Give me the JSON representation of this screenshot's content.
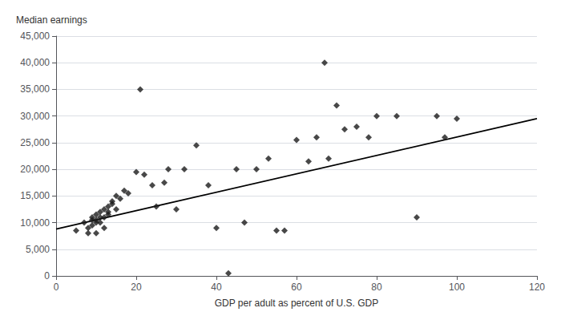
{
  "chart_data": {
    "type": "scatter",
    "xlabel": "GDP per adult as percent of U.S. GDP",
    "ylabel": "Median earnings",
    "series": [
      {
        "type": "scatter",
        "marker": "diamond",
        "color": "#1a1a1a",
        "x": [
          5,
          7,
          8,
          8,
          9,
          9,
          9,
          10,
          10,
          10,
          10,
          11,
          11,
          11,
          12,
          12,
          12,
          13,
          13,
          13,
          14,
          14,
          15,
          15,
          16,
          17,
          18,
          20,
          21,
          22,
          24,
          25,
          27,
          28,
          30,
          32,
          35,
          38,
          40,
          43,
          45,
          47,
          50,
          53,
          55,
          57,
          60,
          63,
          65,
          67,
          68,
          70,
          72,
          75,
          78,
          80,
          85,
          90,
          95,
          97,
          100
        ],
        "values": [
          8500,
          10000,
          9000,
          8000,
          10500,
          11000,
          9500,
          10000,
          10500,
          11500,
          8000,
          11000,
          12000,
          10000,
          12500,
          11000,
          9000,
          12000,
          13000,
          11500,
          14000,
          13500,
          15000,
          12500,
          14500,
          16000,
          15500,
          19500,
          35000,
          19000,
          17000,
          13000,
          17500,
          20000,
          12500,
          20000,
          24500,
          17000,
          9000,
          500,
          20000,
          10000,
          20000,
          22000,
          8500,
          8500,
          25500,
          21500,
          26000,
          40000,
          22000,
          32000,
          27500,
          28000,
          26000,
          30000,
          30000,
          11000,
          30000,
          26000,
          29500
        ]
      },
      {
        "type": "line",
        "line_style": "solid",
        "color": "#000000",
        "x": [
          0,
          120
        ],
        "values": [
          8800,
          29500
        ]
      }
    ],
    "xlim": [
      0,
      120
    ],
    "ylim": [
      0,
      45000
    ],
    "xticks": [
      0,
      20,
      40,
      60,
      80,
      100,
      120
    ],
    "yticks": [
      0,
      {
        "value": 5000,
        "label": "5,000"
      },
      {
        "value": 10000,
        "label": "10,000"
      },
      {
        "value": 15000,
        "label": "15,000"
      },
      {
        "value": 20000,
        "label": "20,000"
      },
      {
        "value": 25000,
        "label": "25,000"
      },
      {
        "value": 30000,
        "label": "30,000"
      },
      {
        "value": 35000,
        "label": "35,000"
      },
      {
        "value": 40000,
        "label": "40,000"
      },
      {
        "value": 45000,
        "label": "45,000"
      }
    ],
    "grid": true
  }
}
